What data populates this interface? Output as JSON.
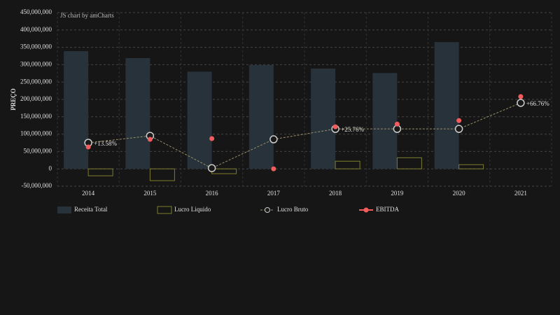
{
  "chart_data": {
    "type": "combo",
    "credit": "JS chart by amCharts",
    "y_axis_label": "PREÇO",
    "categories": [
      "2014",
      "2015",
      "2016",
      "2017",
      "2018",
      "2019",
      "2020",
      "2021"
    ],
    "ylim": [
      -50000000,
      450000000
    ],
    "yticks": [
      {
        "value": -50000000,
        "label": "-50,000,000"
      },
      {
        "value": 0,
        "label": "0"
      },
      {
        "value": 50000000,
        "label": "50,000,000"
      },
      {
        "value": 100000000,
        "label": "100,000,000"
      },
      {
        "value": 150000000,
        "label": "150,000,000"
      },
      {
        "value": 200000000,
        "label": "200,000,000"
      },
      {
        "value": 250000000,
        "label": "250,000,000"
      },
      {
        "value": 300000000,
        "label": "300,000,000"
      },
      {
        "value": 350000000,
        "label": "350,000,000"
      },
      {
        "value": 400000000,
        "label": "400,000,000"
      },
      {
        "value": 450000000,
        "label": "450,000,000"
      }
    ],
    "grid": true,
    "series": [
      {
        "name": "Receita Total",
        "kind": "bar",
        "color": "#28323a",
        "values": [
          339000000,
          319000000,
          280000000,
          299000000,
          289000000,
          276000000,
          365000000,
          null
        ]
      },
      {
        "name": "Lucro Liquido",
        "kind": "bar-outline",
        "color": "#7d7d2e",
        "values": [
          -20000000,
          -34000000,
          -14000000,
          0,
          22000000,
          32000000,
          12000000,
          null
        ]
      },
      {
        "name": "Lucro Bruto",
        "kind": "line",
        "color": "#9a8f6a",
        "values": [
          75000000,
          95000000,
          2000000,
          85000000,
          115000000,
          115000000,
          115000000,
          190000000
        ]
      },
      {
        "name": "EBITDA",
        "kind": "dots",
        "color": "#f25c5c",
        "values": [
          63000000,
          85000000,
          87000000,
          0,
          121000000,
          129000000,
          139000000,
          208000000
        ]
      }
    ],
    "annotations": [
      {
        "category": "2014",
        "text": "+13.58%"
      },
      {
        "category": "2018",
        "text": "+25.76%"
      },
      {
        "category": "2021",
        "text": "+66.76%"
      }
    ]
  }
}
